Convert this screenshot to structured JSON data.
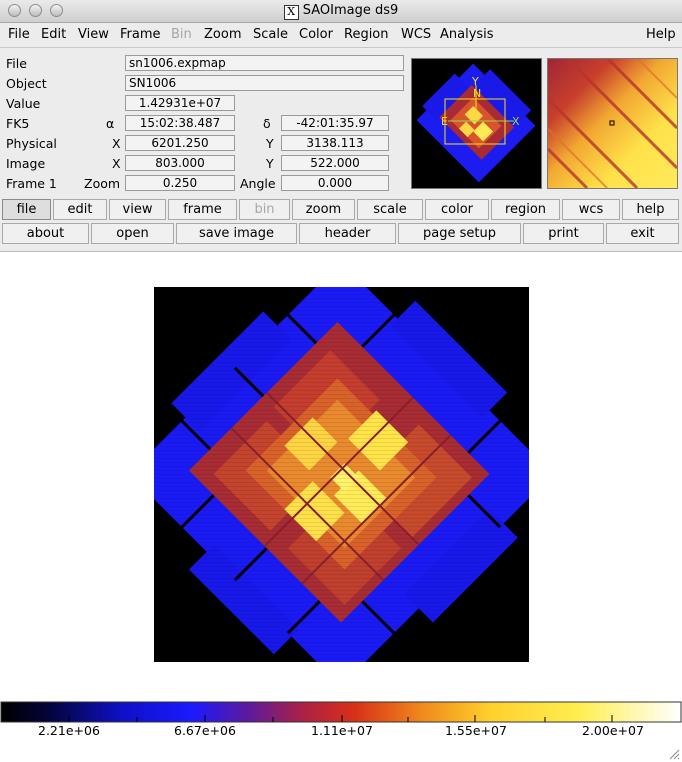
{
  "window": {
    "title": "SAOImage ds9",
    "x_logo": "X"
  },
  "menubar": [
    "File",
    "Edit",
    "View",
    "Frame",
    "Bin",
    "Zoom",
    "Scale",
    "Color",
    "Region",
    "WCS",
    "Analysis",
    "Help"
  ],
  "info": {
    "file_label": "File",
    "file_value": "sn1006.expmap",
    "object_label": "Object",
    "object_value": "SN1006",
    "value_label": "Value",
    "value_value": "1.42931e+07",
    "fk5_label": "FK5",
    "alpha_symbol": "α",
    "alpha_value": "15:02:38.487",
    "delta_symbol": "δ",
    "delta_value": "-42:01:35.97",
    "physical_label": "Physical",
    "physical_x_label": "X",
    "physical_x": "6201.250",
    "physical_y_label": "Y",
    "physical_y": "3138.113",
    "image_label": "Image",
    "image_x_label": "X",
    "image_x": "803.000",
    "image_y_label": "Y",
    "image_y": "522.000",
    "frame_label": "Frame 1",
    "zoom_label": "Zoom",
    "zoom_value": "0.250",
    "angle_label": "Angle",
    "angle_value": "0.000"
  },
  "panner": {
    "north_label": "N",
    "east_label": "E",
    "y_label": "Y",
    "x_label": "X"
  },
  "buttons_row1": [
    "file",
    "edit",
    "view",
    "frame",
    "bin",
    "zoom",
    "scale",
    "color",
    "region",
    "wcs",
    "help"
  ],
  "buttons_row2": [
    "about",
    "open",
    "save image",
    "header",
    "page setup",
    "print",
    "exit"
  ],
  "colorbar": {
    "ticks": [
      "2.21e+06",
      "6.67e+06",
      "1.11e+07",
      "1.55e+07",
      "2.00e+07"
    ]
  },
  "colors": {
    "background": "#000000",
    "low": "#1414ff",
    "mid": "#b02a30",
    "high": "#ffe44a",
    "peak": "#fff36a"
  }
}
